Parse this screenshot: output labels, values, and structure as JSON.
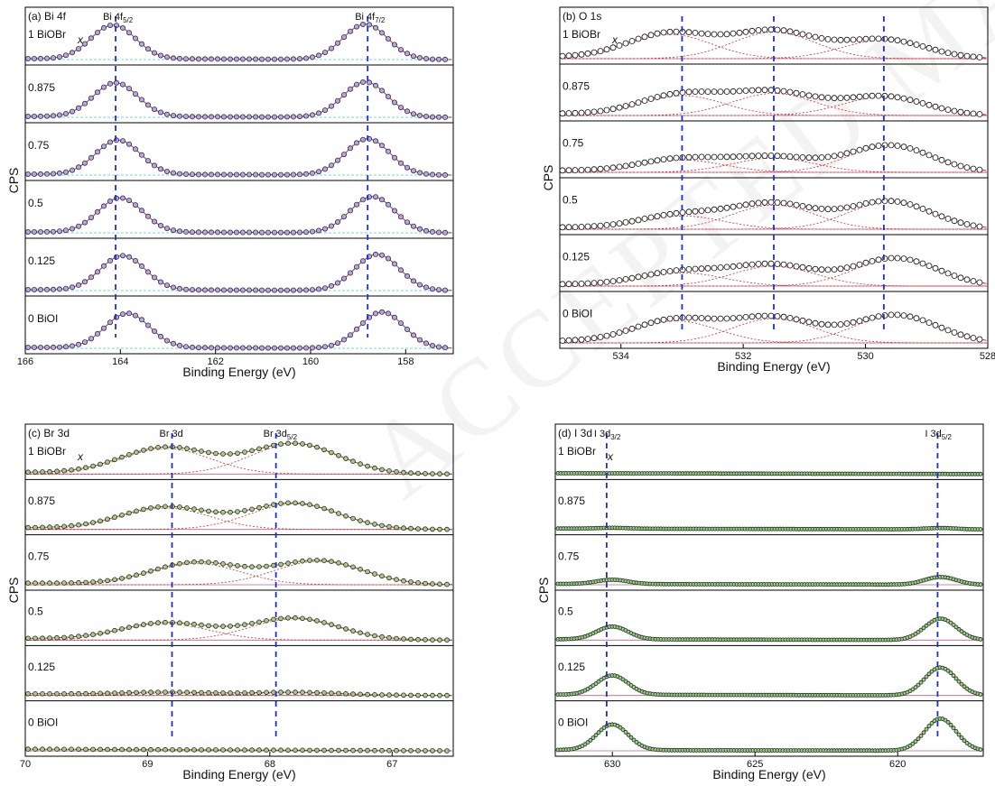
{
  "watermark": "ACCEPTED MANUSCRIPT",
  "chart_data": [
    {
      "type": "line",
      "panel": "a",
      "title": "(a) Bi 4f",
      "xlabel": "Binding Energy (eV)",
      "ylabel": "CPS",
      "x_reversed": true,
      "xlim": [
        166,
        157
      ],
      "xticks": [
        166,
        164,
        162,
        160,
        158
      ],
      "stack_legend": "x",
      "samples": [
        "1 BiOBr",
        "0.875",
        "0.75",
        "0.5",
        "0.125",
        "0 BiOI"
      ],
      "dashed_lines": [
        {
          "x": 164.1,
          "label_main": "Bi 4f",
          "label_sub": "5/2"
        },
        {
          "x": 158.8,
          "label_main": "Bi 4f",
          "label_sub": "7/2"
        }
      ],
      "peaks": [
        {
          "sample": "1 BiOBr",
          "centers": [
            164.15,
            158.85
          ],
          "heights": [
            0.75,
            0.78
          ],
          "fwhm": 1.1
        },
        {
          "sample": "0.875",
          "centers": [
            164.1,
            158.85
          ],
          "heights": [
            0.75,
            0.78
          ],
          "fwhm": 1.1
        },
        {
          "sample": "0.75",
          "centers": [
            164.05,
            158.8
          ],
          "heights": [
            0.76,
            0.8
          ],
          "fwhm": 1.1
        },
        {
          "sample": "0.5",
          "centers": [
            164.0,
            158.7
          ],
          "heights": [
            0.76,
            0.8
          ],
          "fwhm": 1.1
        },
        {
          "sample": "0.125",
          "centers": [
            163.95,
            158.6
          ],
          "heights": [
            0.76,
            0.8
          ],
          "fwhm": 1.1
        },
        {
          "sample": "0 BiOI",
          "centers": [
            163.85,
            158.5
          ],
          "heights": [
            0.76,
            0.8
          ],
          "fwhm": 1.1
        }
      ]
    },
    {
      "type": "line",
      "panel": "b",
      "title": "(b) O 1s",
      "xlabel": "Binding Energy (eV)",
      "ylabel": "CPS",
      "x_reversed": true,
      "xlim": [
        535,
        528
      ],
      "xticks": [
        534,
        532,
        530,
        528
      ],
      "stack_legend": "x",
      "samples": [
        "1 BiOBr",
        "0.875",
        "0.75",
        "0.5",
        "0.125",
        "0 BiOI"
      ],
      "dashed_lines": [
        {
          "x": 533.0
        },
        {
          "x": 531.5
        },
        {
          "x": 529.7
        }
      ],
      "components": [
        {
          "sample": "1 BiOBr",
          "centers": [
            533.2,
            531.5,
            529.7
          ],
          "heights": [
            0.55,
            0.6,
            0.42
          ],
          "fwhm": 1.6
        },
        {
          "sample": "0.875",
          "centers": [
            533.0,
            531.5,
            529.7
          ],
          "heights": [
            0.45,
            0.5,
            0.42
          ],
          "fwhm": 1.6
        },
        {
          "sample": "0.75",
          "centers": [
            533.0,
            531.5,
            529.6
          ],
          "heights": [
            0.28,
            0.32,
            0.6
          ],
          "fwhm": 1.6
        },
        {
          "sample": "0.5",
          "centers": [
            533.0,
            531.5,
            529.6
          ],
          "heights": [
            0.3,
            0.55,
            0.62
          ],
          "fwhm": 1.6
        },
        {
          "sample": "0.125",
          "centers": [
            533.0,
            531.5,
            529.5
          ],
          "heights": [
            0.3,
            0.45,
            0.62
          ],
          "fwhm": 1.6
        },
        {
          "sample": "0 BiOI",
          "centers": [
            533.1,
            531.5,
            529.5
          ],
          "heights": [
            0.5,
            0.55,
            0.62
          ],
          "fwhm": 1.6
        }
      ]
    },
    {
      "type": "line",
      "panel": "c",
      "title": "(c) Br 3d",
      "xlabel": "Binding Energy (eV)",
      "ylabel": "CPS",
      "x_reversed": true,
      "xlim": [
        70,
        66.5
      ],
      "xticks": [
        70,
        69,
        68,
        67
      ],
      "stack_legend": "x",
      "samples": [
        "1 BiOBr",
        "0.875",
        "0.75",
        "0.5",
        "0.125",
        "0 BiOI"
      ],
      "dashed_lines": [
        {
          "x": 68.8,
          "label_main": "Br 3d",
          "label_sub": ""
        },
        {
          "x": 67.95,
          "label_main": "Br 3d",
          "label_sub": "5/2"
        }
      ],
      "components": [
        {
          "sample": "1 BiOBr",
          "centers": [
            68.85,
            67.8
          ],
          "heights": [
            0.6,
            0.7
          ],
          "fwhm": 0.85
        },
        {
          "sample": "0.875",
          "centers": [
            68.85,
            67.8
          ],
          "heights": [
            0.5,
            0.6
          ],
          "fwhm": 0.85
        },
        {
          "sample": "0.75",
          "centers": [
            68.6,
            67.6
          ],
          "heights": [
            0.5,
            0.55
          ],
          "fwhm": 0.85
        },
        {
          "sample": "0.5",
          "centers": [
            68.85,
            67.8
          ],
          "heights": [
            0.38,
            0.5
          ],
          "fwhm": 0.85
        },
        {
          "sample": "0.125",
          "centers": [
            68.85,
            67.8
          ],
          "heights": [
            0.05,
            0.06
          ],
          "fwhm": 0.85
        },
        {
          "sample": "0 BiOI",
          "centers": [
            68.85,
            67.8
          ],
          "heights": [
            0.0,
            0.0
          ],
          "fwhm": 0.85
        }
      ]
    },
    {
      "type": "line",
      "panel": "d",
      "title": "(d) I 3d",
      "xlabel": "Binding Energy (eV)",
      "ylabel": "CPS",
      "x_reversed": true,
      "xlim": [
        632,
        617
      ],
      "xticks": [
        630,
        625,
        620
      ],
      "stack_legend": "x",
      "samples": [
        "1 BiOBr",
        "0.875",
        "0.75",
        "0.5",
        "0.125",
        "0 BiOI"
      ],
      "dashed_lines": [
        {
          "x": 630.2,
          "label_main": "I 3d",
          "label_sub": "3/2"
        },
        {
          "x": 618.6,
          "label_main": "I 3d",
          "label_sub": "5/2"
        }
      ],
      "peaks": [
        {
          "sample": "1 BiOBr",
          "centers": [
            630.0,
            618.5
          ],
          "heights": [
            0.0,
            0.0
          ],
          "fwhm": 1.3
        },
        {
          "sample": "0.875",
          "centers": [
            630.0,
            618.5
          ],
          "heights": [
            0.02,
            0.03
          ],
          "fwhm": 1.3
        },
        {
          "sample": "0.75",
          "centers": [
            630.0,
            618.5
          ],
          "heights": [
            0.1,
            0.18
          ],
          "fwhm": 1.3
        },
        {
          "sample": "0.5",
          "centers": [
            630.0,
            618.5
          ],
          "heights": [
            0.3,
            0.5
          ],
          "fwhm": 1.3
        },
        {
          "sample": "0.125",
          "centers": [
            630.0,
            618.5
          ],
          "heights": [
            0.45,
            0.65
          ],
          "fwhm": 1.3
        },
        {
          "sample": "0 BiOI",
          "centers": [
            630.0,
            618.5
          ],
          "heights": [
            0.6,
            0.75
          ],
          "fwhm": 1.3
        }
      ]
    }
  ]
}
